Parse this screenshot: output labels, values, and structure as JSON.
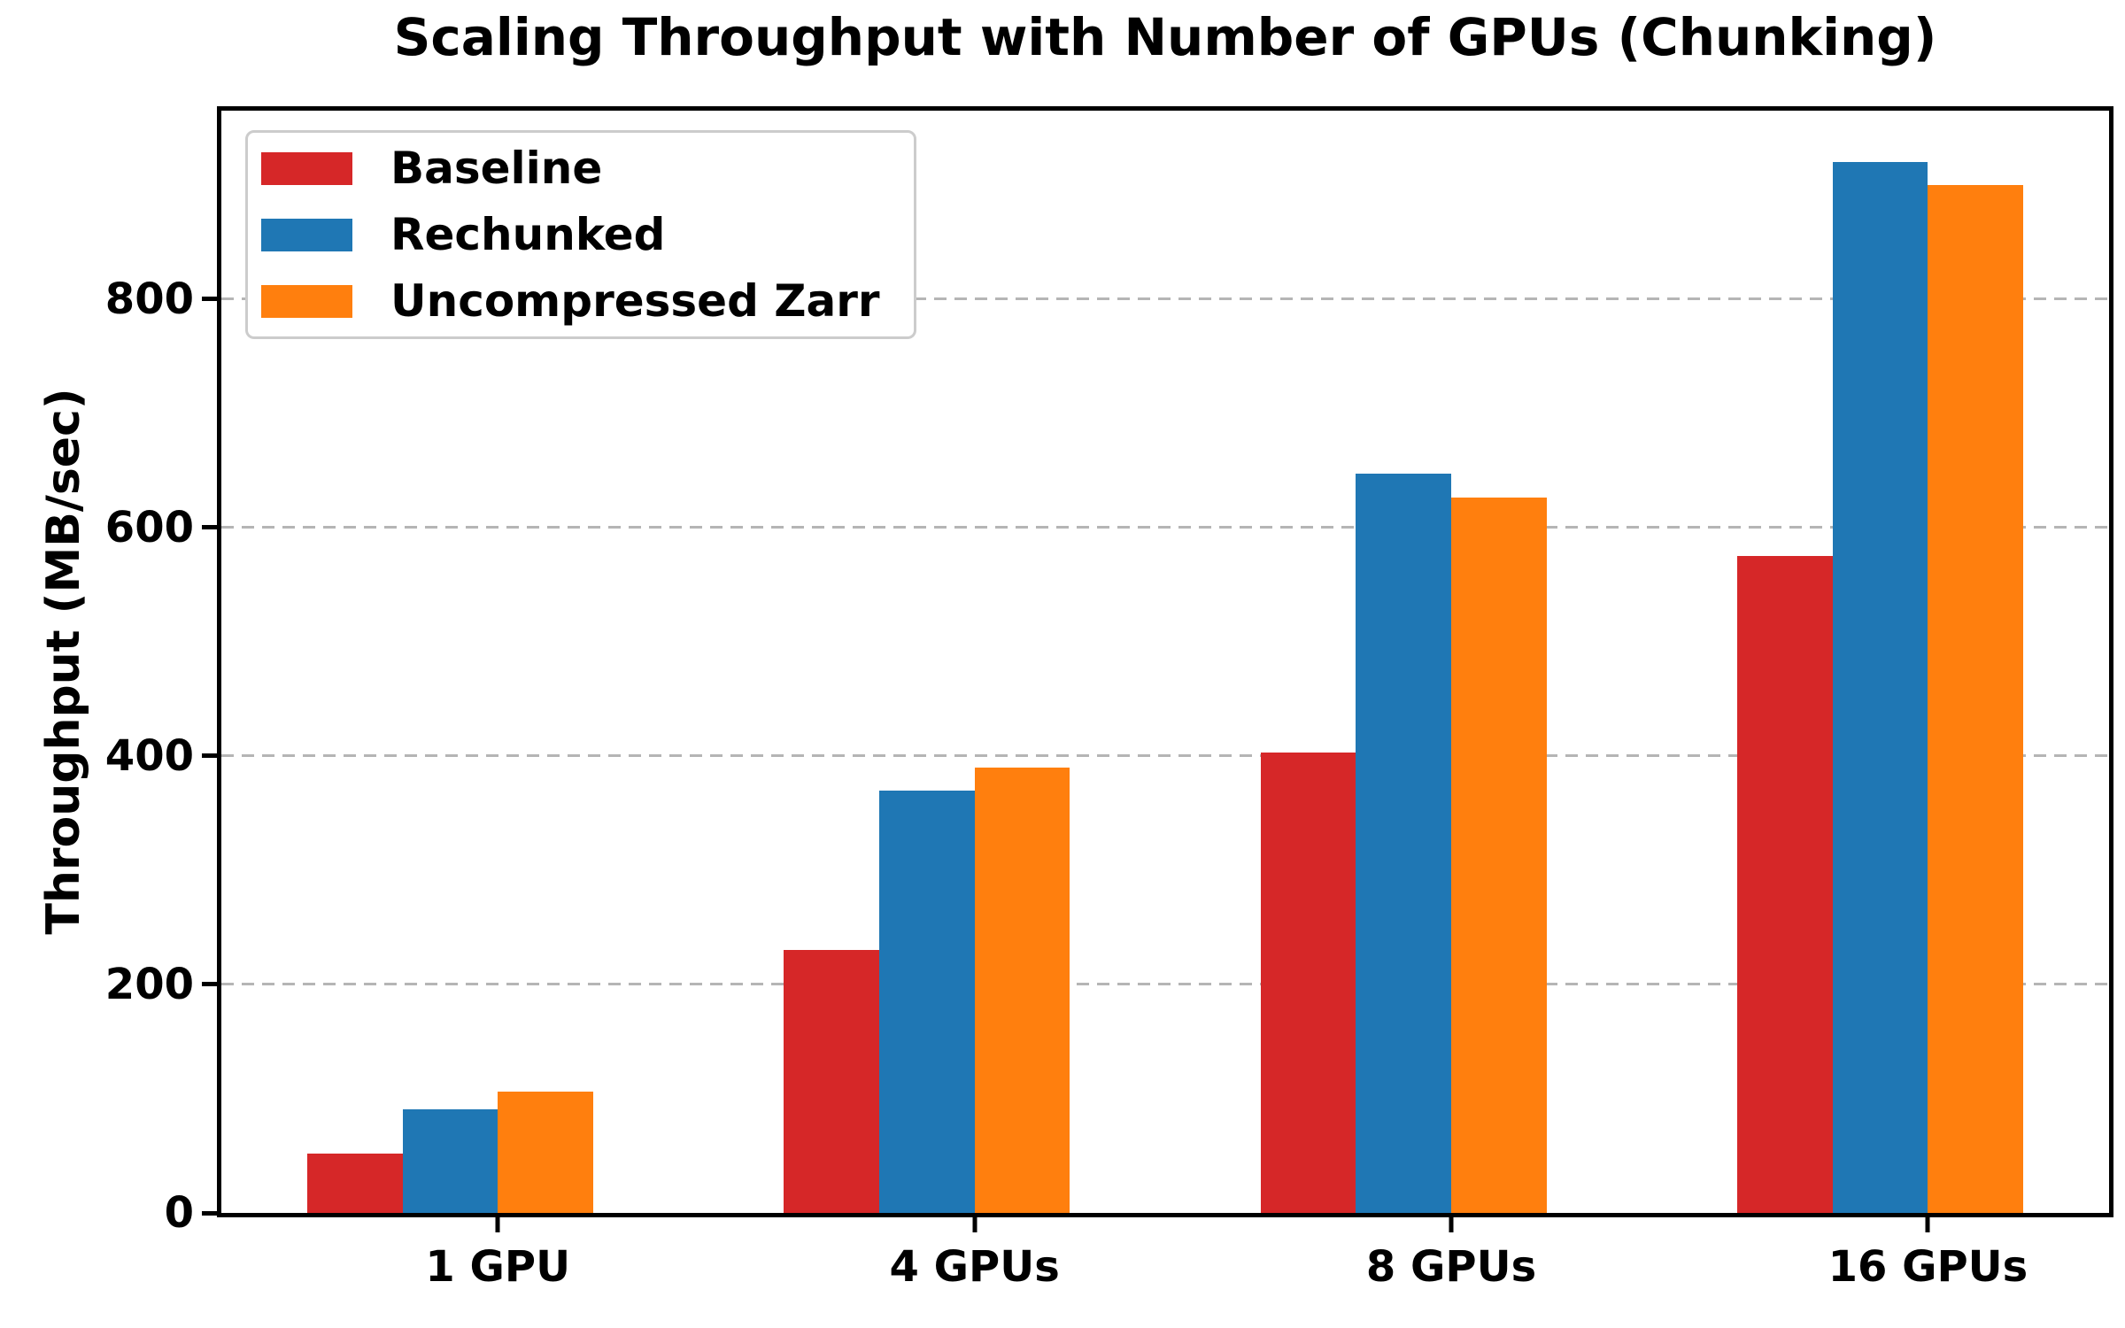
{
  "title": "Scaling Throughput with Number of GPUs (Chunking)",
  "chart_data": {
    "type": "bar",
    "title": "Scaling Throughput with Number of GPUs (Chunking)",
    "xlabel": "",
    "ylabel": "Throughput (MB/sec)",
    "categories": [
      "1 GPU",
      "4 GPUs",
      "8 GPUs",
      "16 GPUs"
    ],
    "series": [
      {
        "name": "Baseline",
        "color": "#d62728",
        "values": [
          52,
          230,
          403,
          575
        ]
      },
      {
        "name": "Rechunked",
        "color": "#1f77b4",
        "values": [
          91,
          370,
          647,
          920
        ]
      },
      {
        "name": "Uncompressed Zarr",
        "color": "#ff7f0e",
        "values": [
          106,
          390,
          626,
          900
        ]
      }
    ],
    "yticks": [
      0,
      200,
      400,
      600,
      800
    ],
    "ylim": [
      0,
      965
    ],
    "grid": {
      "axis": "y",
      "style": "dashed",
      "color": "#b5b5b5"
    },
    "legend": {
      "position": "upper left",
      "border_color": "#cccccc"
    },
    "axis_color": "#000000",
    "background": "#ffffff"
  }
}
